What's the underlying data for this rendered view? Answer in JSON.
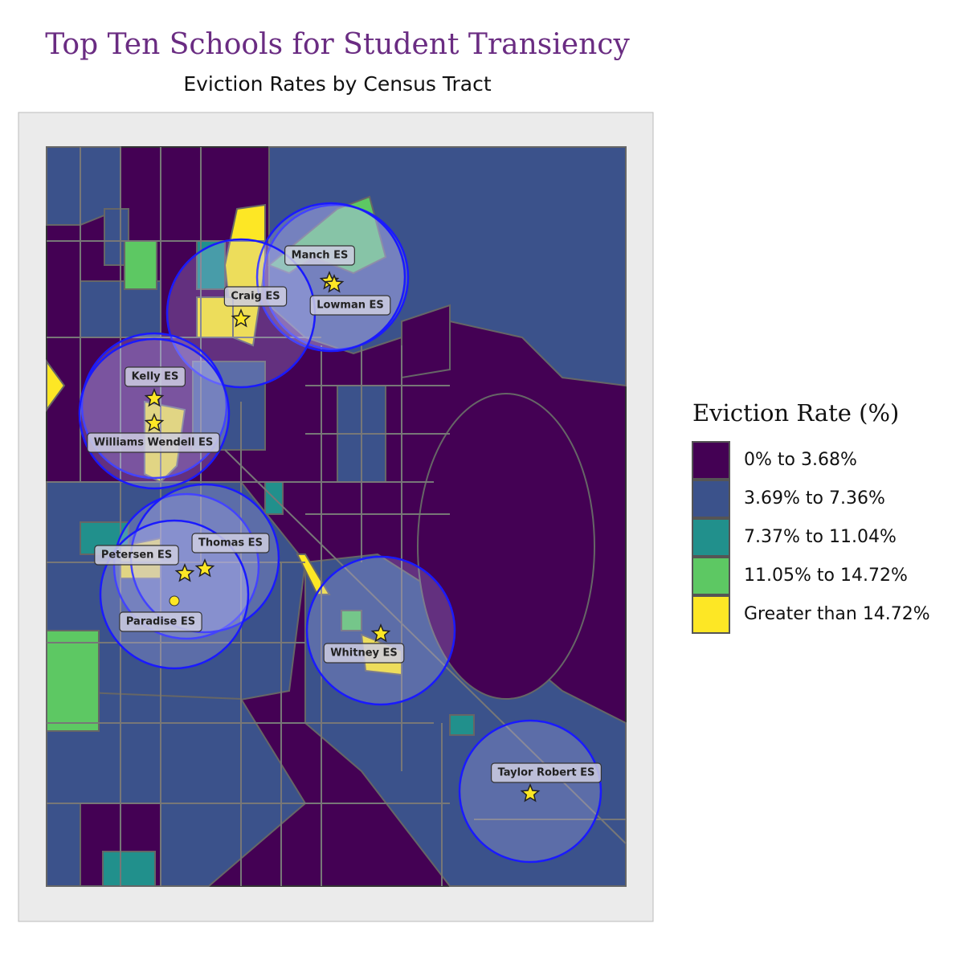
{
  "title": "Top Ten Schools for Student Transiency",
  "subtitle": "Eviction Rates by Census Tract",
  "legend": {
    "title": "Eviction Rate (%)",
    "items": [
      {
        "label": "0% to 3.68%",
        "color": "#440154"
      },
      {
        "label": "3.69% to 7.36%",
        "color": "#3b528b"
      },
      {
        "label": "7.37% to 11.04%",
        "color": "#21908c"
      },
      {
        "label": "11.05% to 14.72%",
        "color": "#5dc863"
      },
      {
        "label": "Greater than 14.72%",
        "color": "#fde725"
      }
    ]
  },
  "schools": [
    {
      "label": "Manch ES"
    },
    {
      "label": "Lowman ES"
    },
    {
      "label": "Craig ES"
    },
    {
      "label": "Kelly ES"
    },
    {
      "label": "Williams Wendell ES"
    },
    {
      "label": "Petersen ES"
    },
    {
      "label": "Thomas ES"
    },
    {
      "label": "Paradise ES"
    },
    {
      "label": "Whitney ES"
    },
    {
      "label": "Taylor Robert ES"
    }
  ]
}
